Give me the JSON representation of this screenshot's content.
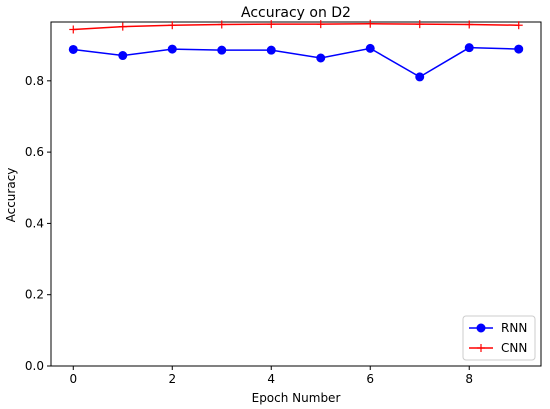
{
  "chart_data": {
    "type": "line",
    "title": "Accuracy on D2",
    "xlabel": "Epoch Number",
    "ylabel": "Accuracy",
    "x": [
      0,
      1,
      2,
      3,
      4,
      5,
      6,
      7,
      8,
      9
    ],
    "xlim": [
      -0.45,
      9.45
    ],
    "ylim": [
      0.0,
      0.965
    ],
    "xticks": [
      0,
      2,
      4,
      6,
      8
    ],
    "xtick_labels": [
      "0",
      "2",
      "4",
      "6",
      "8"
    ],
    "yticks": [
      0.0,
      0.2,
      0.4,
      0.6,
      0.8
    ],
    "ytick_labels": [
      "0.0",
      "0.2",
      "0.4",
      "0.6",
      "0.8"
    ],
    "grid": false,
    "legend_position": "lower-right",
    "series": [
      {
        "name": "RNN",
        "color": "#0000ff",
        "marker": "circle",
        "values": [
          0.888,
          0.871,
          0.889,
          0.886,
          0.886,
          0.864,
          0.891,
          0.811,
          0.893,
          0.889
        ]
      },
      {
        "name": "CNN",
        "color": "#ff0000",
        "marker": "plus",
        "values": [
          0.944,
          0.952,
          0.956,
          0.958,
          0.959,
          0.959,
          0.96,
          0.959,
          0.958,
          0.956
        ]
      }
    ]
  }
}
